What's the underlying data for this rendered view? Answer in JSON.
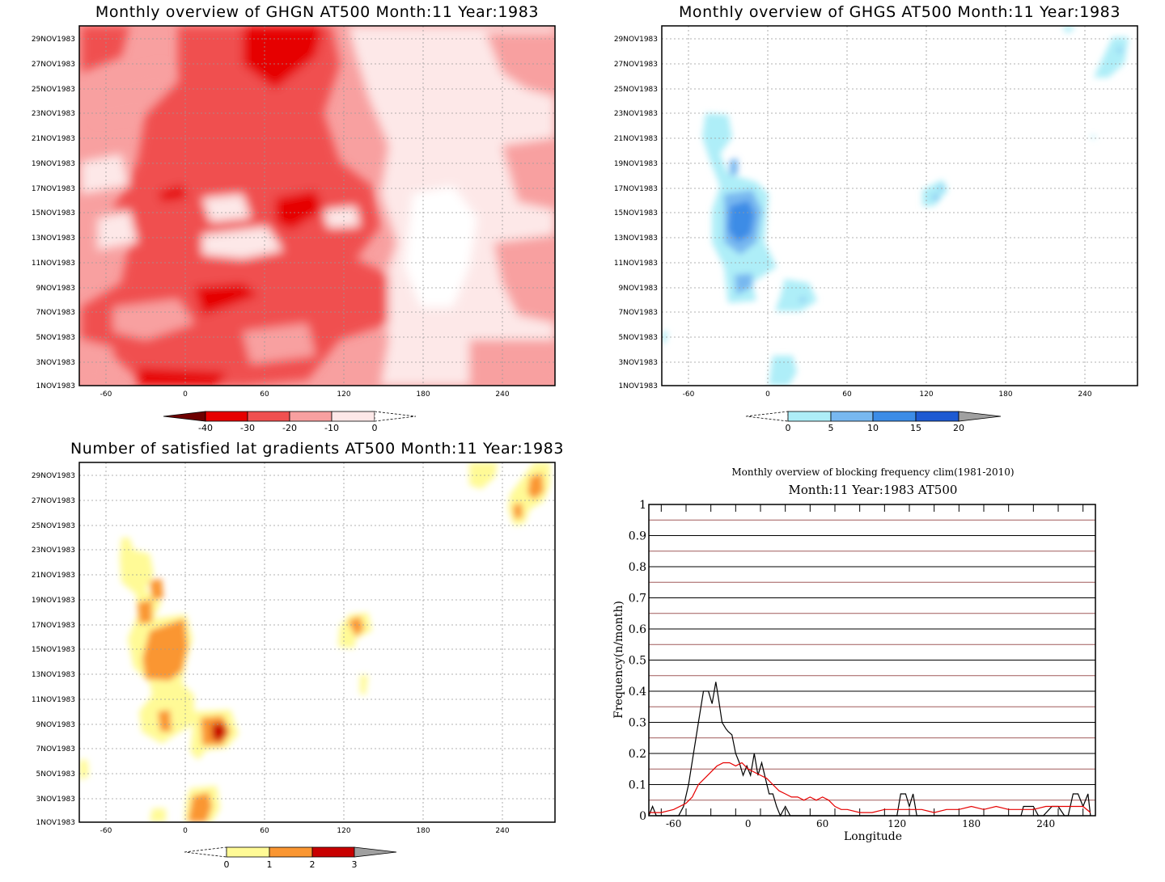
{
  "panels": {
    "ghgn": {
      "title": "Monthly overview of GHGN AT500 Month:11 Year:1983",
      "colorbar_labels": [
        "-40",
        "-30",
        "-20",
        "-10",
        "0"
      ],
      "colorbar_colors": [
        "#6e0000",
        "#e60000",
        "#f05050",
        "#f8a0a0",
        "#fde8e8",
        "#ffffff"
      ]
    },
    "ghgs": {
      "title": "Monthly overview of GHGS AT500 Month:11 Year:1983",
      "colorbar_labels": [
        "0",
        "5",
        "10",
        "15",
        "20"
      ],
      "colorbar_colors": [
        "#ffffff",
        "#aeeef8",
        "#78b8f0",
        "#3c8ce6",
        "#1e5ad2",
        "#a0a0a0"
      ]
    },
    "gradients": {
      "title": "Number of satisfied lat gradients AT500 Month:11 Year:1983",
      "colorbar_labels": [
        "0",
        "1",
        "2",
        "3"
      ],
      "colorbar_colors": [
        "#ffffff",
        "#fffa96",
        "#fa9632",
        "#c80000",
        "#a0a0a0"
      ]
    },
    "blocking": {
      "title": "Monthly overview of blocking frequency clim(1981-2010)",
      "subtitle": "Month:11 Year:1983  AT500",
      "xlabel": "Longitude",
      "ylabel": "Frequency(n/month)"
    }
  },
  "hovmoller_axes": {
    "x_ticks": [
      "-60",
      "0",
      "60",
      "120",
      "180",
      "240"
    ],
    "y_ticks": [
      "1NOV1983",
      "3NOV1983",
      "5NOV1983",
      "7NOV1983",
      "9NOV1983",
      "11NOV1983",
      "13NOV1983",
      "15NOV1983",
      "17NOV1983",
      "19NOV1983",
      "21NOV1983",
      "23NOV1983",
      "25NOV1983",
      "27NOV1983",
      "29NOV1983"
    ]
  },
  "chart_data": [
    {
      "type": "heatmap",
      "title": "Monthly overview of GHGN AT500 Month:11 Year:1983",
      "xlim": [
        -80,
        280
      ],
      "ylim": [
        "1NOV1983",
        "30NOV1983"
      ],
      "levels": [
        -40,
        -30,
        -20,
        -10,
        0
      ]
    },
    {
      "type": "heatmap",
      "title": "Monthly overview of GHGS AT500 Month:11 Year:1983",
      "xlim": [
        -80,
        280
      ],
      "ylim": [
        "1NOV1983",
        "30NOV1983"
      ],
      "levels": [
        0,
        5,
        10,
        15,
        20
      ]
    },
    {
      "type": "heatmap",
      "title": "Number of satisfied lat gradients AT500 Month:11 Year:1983",
      "xlim": [
        -80,
        280
      ],
      "ylim": [
        "1NOV1983",
        "30NOV1983"
      ],
      "levels": [
        0,
        1,
        2,
        3
      ]
    },
    {
      "type": "line",
      "title": "Monthly overview of blocking frequency clim(1981-2010)",
      "subtitle": "Month:11 Year:1983  AT500",
      "xlabel": "Longitude",
      "ylabel": "Frequency(n/month)",
      "xlim": [
        -80,
        280
      ],
      "ylim": [
        0,
        1
      ],
      "x_ticks": [
        "-60",
        "0",
        "60",
        "120",
        "180",
        "240"
      ],
      "y_ticks": [
        "0",
        "0.1",
        "0.2",
        "0.3",
        "0.4",
        "0.5",
        "0.6",
        "0.7",
        "0.8",
        "0.9",
        "1"
      ],
      "series": [
        {
          "color": "#000000",
          "x": [
            -80,
            -77,
            -74,
            -70,
            -65,
            -60,
            -56,
            -52,
            -48,
            -44,
            -40,
            -36,
            -32,
            -29,
            -26,
            -24,
            -21,
            -18,
            -16,
            -13,
            -10,
            -7,
            -4,
            -1,
            2,
            5,
            8,
            11,
            14,
            17,
            20,
            23,
            26,
            30,
            34,
            38,
            42,
            46,
            120,
            123,
            127,
            130,
            133,
            136,
            160,
            220,
            222,
            226,
            230,
            234,
            238,
            245,
            250,
            255,
            258,
            262,
            266,
            270,
            274,
            276
          ],
          "y": [
            0.0,
            0.03,
            0.0,
            0.0,
            0.0,
            0.0,
            0.0,
            0.03,
            0.1,
            0.2,
            0.3,
            0.4,
            0.4,
            0.36,
            0.43,
            0.38,
            0.3,
            0.28,
            0.27,
            0.26,
            0.2,
            0.17,
            0.13,
            0.16,
            0.13,
            0.2,
            0.13,
            0.17,
            0.12,
            0.07,
            0.07,
            0.03,
            0.0,
            0.03,
            0.0,
            0.0,
            0.0,
            0.0,
            0.0,
            0.07,
            0.07,
            0.03,
            0.07,
            0.0,
            0.0,
            0.0,
            0.03,
            0.03,
            0.03,
            0.0,
            0.0,
            0.03,
            0.03,
            0.0,
            0.0,
            0.07,
            0.07,
            0.03,
            0.07,
            0.0
          ]
        },
        {
          "color": "#e60000",
          "x": [
            -80,
            -70,
            -60,
            -50,
            -45,
            -40,
            -35,
            -30,
            -25,
            -20,
            -15,
            -10,
            -5,
            0,
            5,
            10,
            15,
            20,
            25,
            30,
            35,
            40,
            45,
            50,
            55,
            60,
            65,
            70,
            75,
            80,
            90,
            100,
            110,
            120,
            130,
            140,
            150,
            160,
            170,
            180,
            190,
            200,
            210,
            220,
            230,
            240,
            250,
            260,
            270,
            276
          ],
          "y": [
            0.01,
            0.01,
            0.02,
            0.04,
            0.06,
            0.1,
            0.12,
            0.14,
            0.16,
            0.17,
            0.17,
            0.16,
            0.17,
            0.15,
            0.14,
            0.13,
            0.12,
            0.1,
            0.08,
            0.07,
            0.06,
            0.06,
            0.05,
            0.06,
            0.05,
            0.06,
            0.05,
            0.03,
            0.02,
            0.02,
            0.01,
            0.01,
            0.02,
            0.02,
            0.02,
            0.02,
            0.01,
            0.02,
            0.02,
            0.03,
            0.02,
            0.03,
            0.02,
            0.02,
            0.02,
            0.03,
            0.03,
            0.03,
            0.03,
            0.01
          ]
        }
      ]
    }
  ]
}
